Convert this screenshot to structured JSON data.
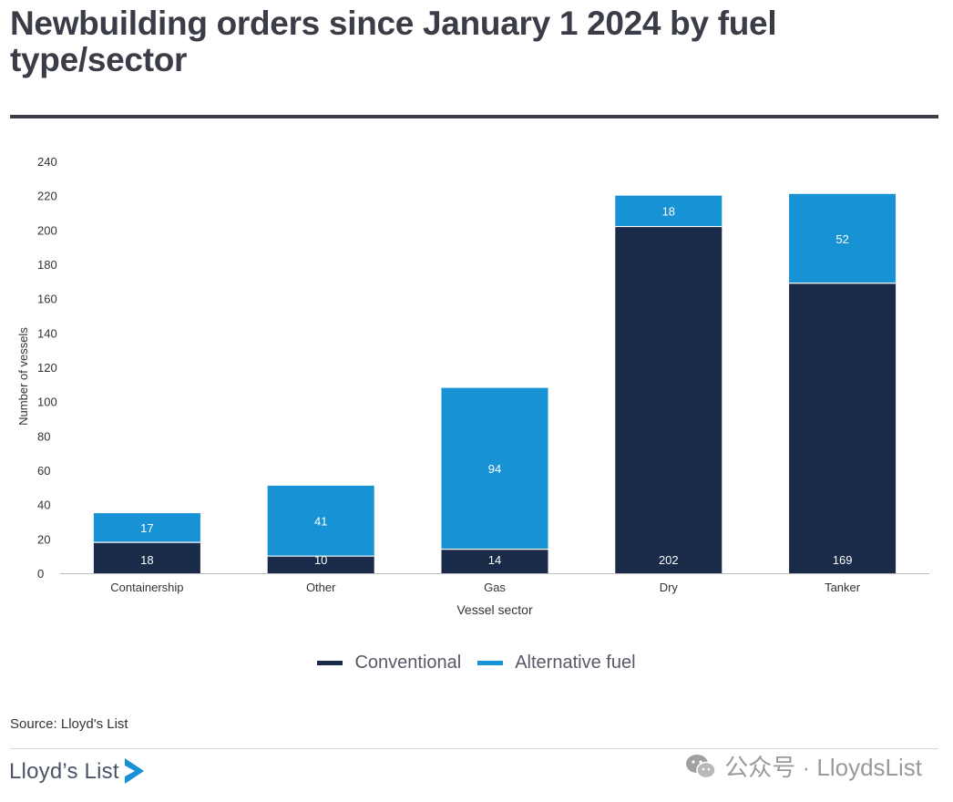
{
  "title": "Newbuilding orders since January 1 2024 by fuel type/sector",
  "source": "Source: Lloyd's List",
  "logo_text": "Lloyd’s List",
  "watermark_text": "公众号 · LloydsList",
  "colors": {
    "conventional": "#1a2b4a",
    "alternative": "#1792d4",
    "text": "#3a3d47",
    "axis": "#bbbbbb"
  },
  "chart_data": {
    "type": "bar",
    "stacked": true,
    "categories": [
      "Containership",
      "Other",
      "Gas",
      "Dry",
      "Tanker"
    ],
    "series": [
      {
        "name": "Conventional",
        "values": [
          18,
          10,
          14,
          202,
          169
        ]
      },
      {
        "name": "Alternative fuel",
        "values": [
          17,
          41,
          94,
          18,
          52
        ]
      }
    ],
    "xlabel": "Vessel sector",
    "ylabel": "Number of vessels",
    "ylim": [
      0,
      240
    ],
    "yticks": [
      0,
      20,
      40,
      60,
      80,
      100,
      120,
      140,
      160,
      180,
      200,
      220,
      240
    ],
    "grid": false,
    "legend_position": "bottom"
  }
}
